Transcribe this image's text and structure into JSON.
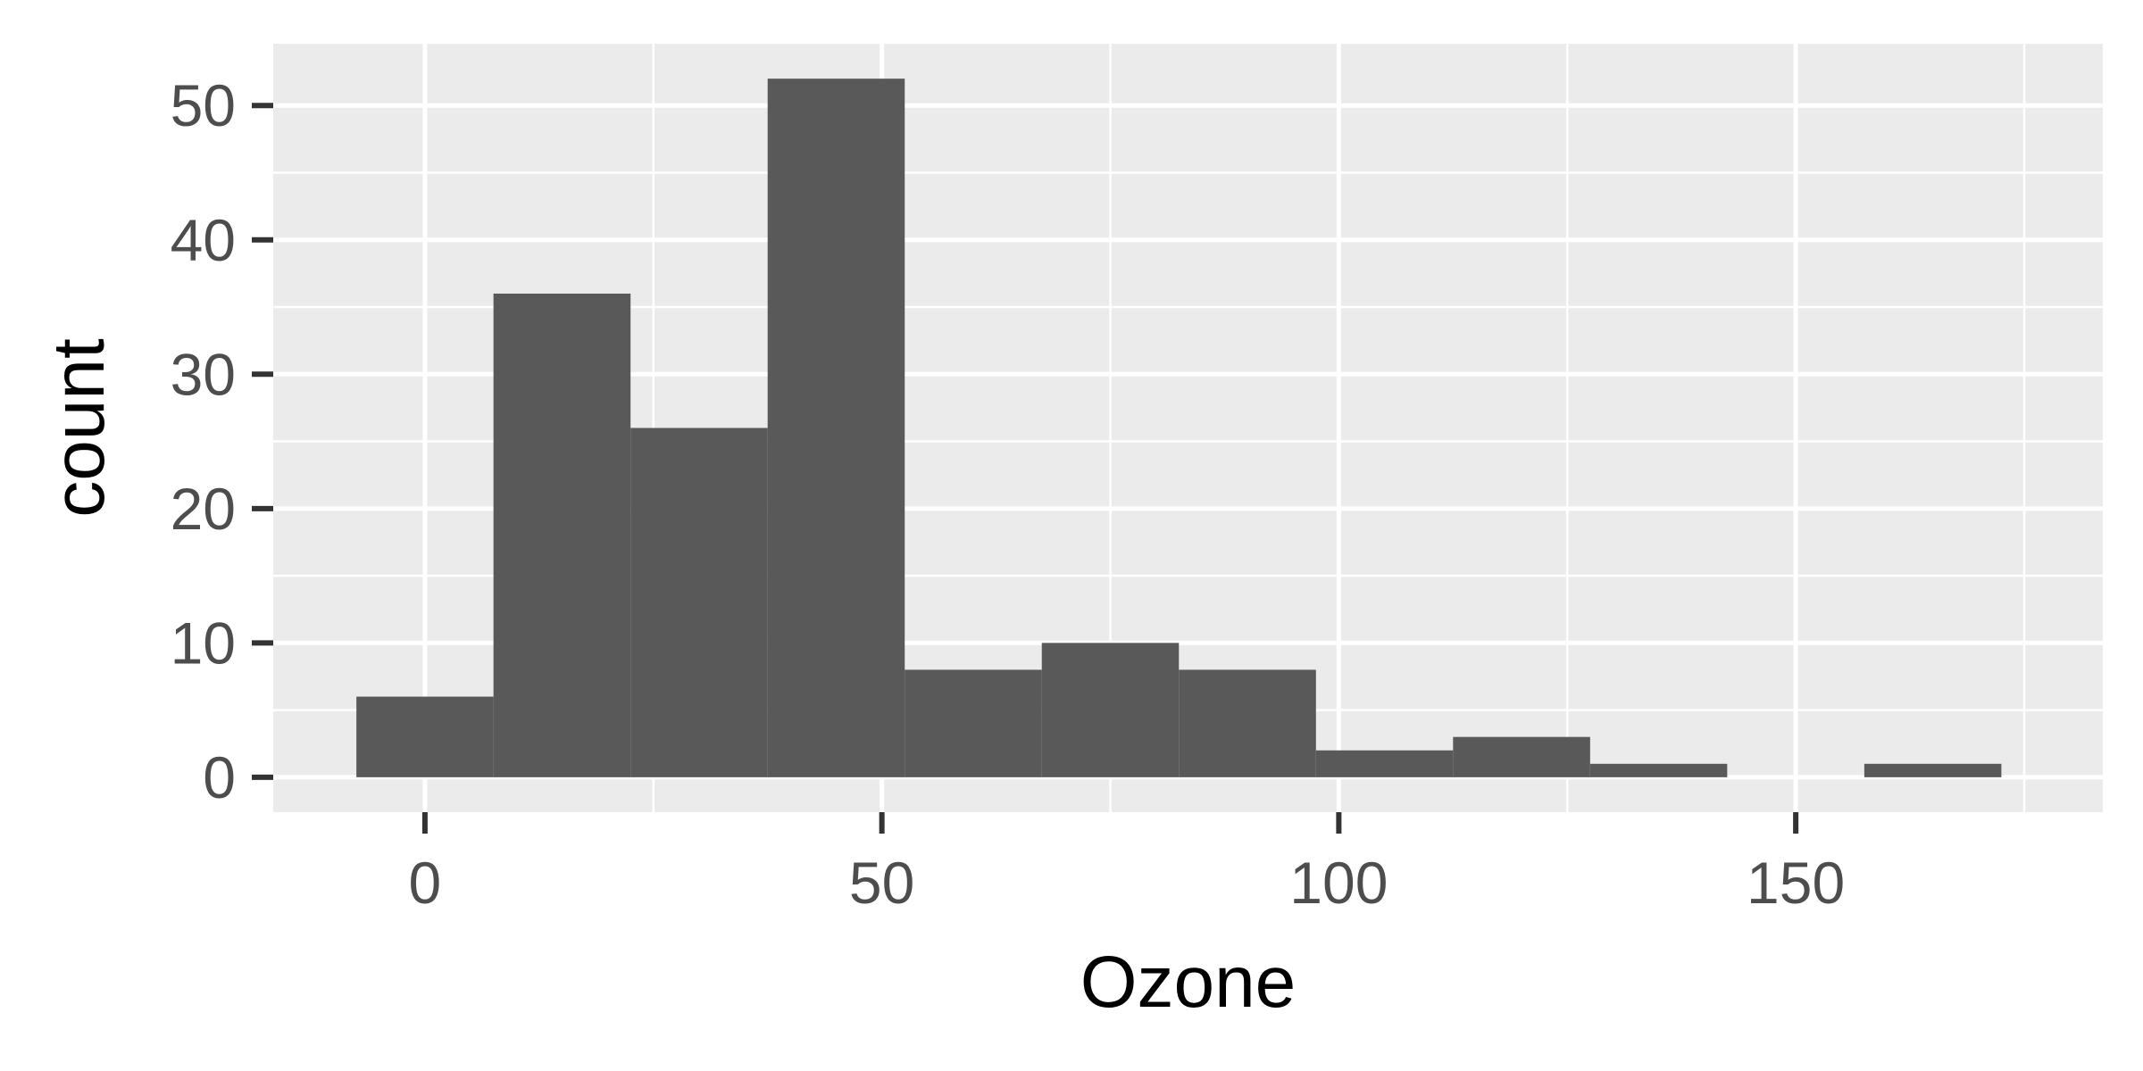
{
  "chart_data": {
    "type": "bar",
    "subtype": "histogram",
    "xlabel": "Ozone",
    "ylabel": "count",
    "xlim": [
      -16.6,
      183.6
    ],
    "ylim": [
      -2.6,
      54.6
    ],
    "x_ticks": [
      0,
      50,
      100,
      150
    ],
    "y_ticks": [
      0,
      10,
      20,
      30,
      40,
      50
    ],
    "grid": true,
    "bins": [
      {
        "x0": -7.5,
        "x1": 7.5,
        "count": 6
      },
      {
        "x0": 7.5,
        "x1": 22.5,
        "count": 36
      },
      {
        "x0": 22.5,
        "x1": 37.5,
        "count": 26
      },
      {
        "x0": 37.5,
        "x1": 52.5,
        "count": 52
      },
      {
        "x0": 52.5,
        "x1": 67.5,
        "count": 8
      },
      {
        "x0": 67.5,
        "x1": 82.5,
        "count": 10
      },
      {
        "x0": 82.5,
        "x1": 97.5,
        "count": 8
      },
      {
        "x0": 97.5,
        "x1": 112.5,
        "count": 2
      },
      {
        "x0": 112.5,
        "x1": 127.5,
        "count": 3
      },
      {
        "x0": 127.5,
        "x1": 142.5,
        "count": 1
      },
      {
        "x0": 142.5,
        "x1": 157.5,
        "count": 0
      },
      {
        "x0": 157.5,
        "x1": 172.5,
        "count": 1
      }
    ],
    "colors": {
      "panel_background": "#ebebeb",
      "grid_major": "#ffffff",
      "grid_minor": "#ffffff",
      "bar_fill": "#595959",
      "tick_mark": "#333333",
      "tick_label": "#4d4d4d",
      "axis_title": "#000000"
    }
  }
}
